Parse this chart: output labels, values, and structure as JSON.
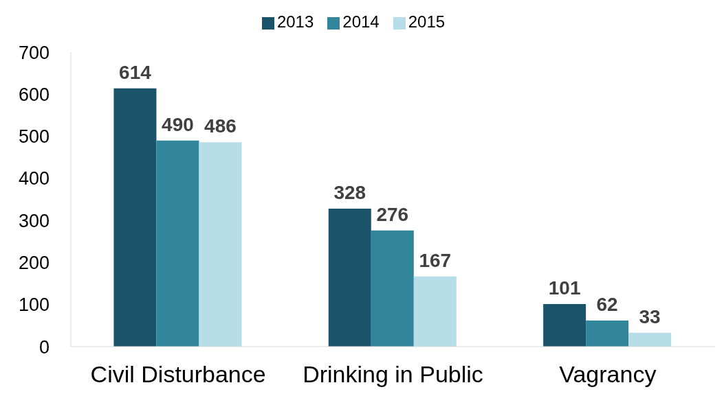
{
  "chart_data": {
    "type": "bar",
    "categories": [
      "Civil Disturbance",
      "Drinking in Public",
      "Vagrancy"
    ],
    "series": [
      {
        "name": "2013",
        "color": "#1b536b",
        "values": [
          614,
          328,
          101
        ]
      },
      {
        "name": "2014",
        "color": "#31869b",
        "values": [
          490,
          276,
          62
        ]
      },
      {
        "name": "2015",
        "color": "#b7dde8",
        "values": [
          486,
          167,
          33
        ]
      }
    ],
    "ylim": [
      0,
      700
    ],
    "yticks": [
      0,
      100,
      200,
      300,
      400,
      500,
      600,
      700
    ],
    "data_labels": true,
    "legend": "top"
  }
}
